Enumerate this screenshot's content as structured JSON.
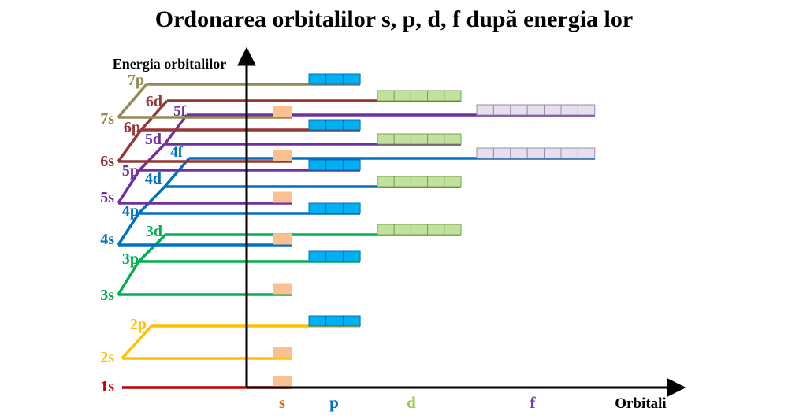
{
  "title": "Ordonarea orbitalilor s, p, d, f după energia lor",
  "axes": {
    "y_label": "Energia orbitalilor",
    "x_label": "Orbitali",
    "columns": [
      {
        "name": "s",
        "color": "#e36c0a"
      },
      {
        "name": "p",
        "color": "#0070c0"
      },
      {
        "name": "d",
        "color": "#92d050"
      },
      {
        "name": "f",
        "color": "#7030a0"
      }
    ]
  },
  "colors": {
    "box_s": "#fac090",
    "box_p": "#00b0f0",
    "box_d": "#c3e0a0",
    "box_f": "#e6e0ec",
    "axis": "#000000"
  },
  "periods": [
    {
      "n": 1,
      "color": "#c00000",
      "levels": [
        {
          "label": "1s",
          "type": "s"
        }
      ]
    },
    {
      "n": 2,
      "color": "#ffc000",
      "levels": [
        {
          "label": "2s",
          "type": "s"
        },
        {
          "label": "2p",
          "type": "p"
        }
      ]
    },
    {
      "n": 3,
      "color": "#00b050",
      "levels": [
        {
          "label": "3s",
          "type": "s"
        },
        {
          "label": "3p",
          "type": "p"
        },
        {
          "label": "3d",
          "type": "d"
        }
      ]
    },
    {
      "n": 4,
      "color": "#0070c0",
      "levels": [
        {
          "label": "4s",
          "type": "s"
        },
        {
          "label": "4p",
          "type": "p"
        },
        {
          "label": "4d",
          "type": "d"
        },
        {
          "label": "4f",
          "type": "f"
        }
      ]
    },
    {
      "n": 5,
      "color": "#7030a0",
      "levels": [
        {
          "label": "5s",
          "type": "s"
        },
        {
          "label": "5p",
          "type": "p"
        },
        {
          "label": "5d",
          "type": "d"
        },
        {
          "label": "5f",
          "type": "f"
        }
      ]
    },
    {
      "n": 6,
      "color": "#953735",
      "levels": [
        {
          "label": "6s",
          "type": "s"
        },
        {
          "label": "6p",
          "type": "p"
        },
        {
          "label": "6d",
          "type": "d"
        }
      ]
    },
    {
      "n": 7,
      "color": "#948a54",
      "levels": [
        {
          "label": "7s",
          "type": "s"
        },
        {
          "label": "7p",
          "type": "p"
        }
      ]
    }
  ]
}
